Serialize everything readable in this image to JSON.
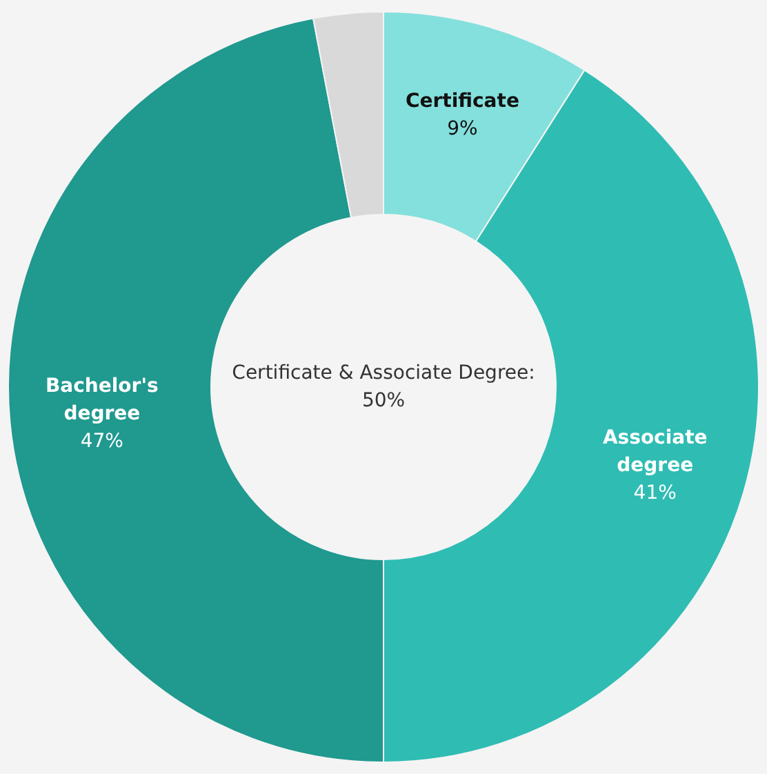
{
  "chart_data": {
    "type": "donut",
    "categories": [
      "Certificate",
      "Associate degree",
      "Bachelor's degree",
      null
    ],
    "values": [
      9,
      41,
      47,
      3
    ],
    "value_labels": [
      "9%",
      "41%",
      "47%",
      null
    ],
    "colors": [
      "#84e0dc",
      "#2fbcb3",
      "#20998f",
      "#d9d9d9"
    ],
    "annotations": [
      "Certificate & Associate Degree: 50%"
    ]
  }
}
